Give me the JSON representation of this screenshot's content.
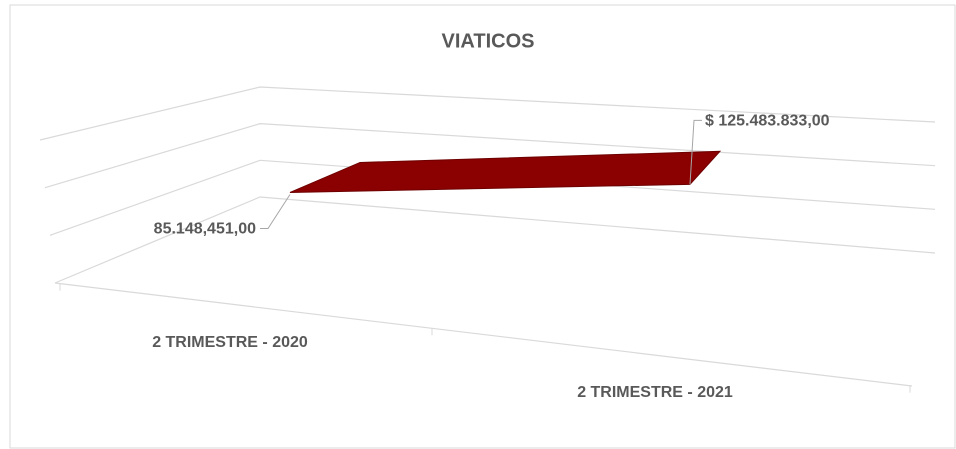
{
  "chart_data": {
    "type": "line",
    "title": "VIATICOS",
    "categories": [
      "2 TRIMESTRE - 2020",
      "2 TRIMESTRE - 2021"
    ],
    "series": [
      {
        "name": "VIATICOS",
        "color": "#8b0000",
        "values": [
          85148451,
          125483833
        ],
        "value_labels": [
          "85.148,451,00",
          "$ 125.483.833,00"
        ]
      }
    ],
    "ylim": [
      0,
      150000000
    ],
    "yticks": [
      0,
      50000000,
      100000000,
      150000000
    ],
    "grid": true
  }
}
